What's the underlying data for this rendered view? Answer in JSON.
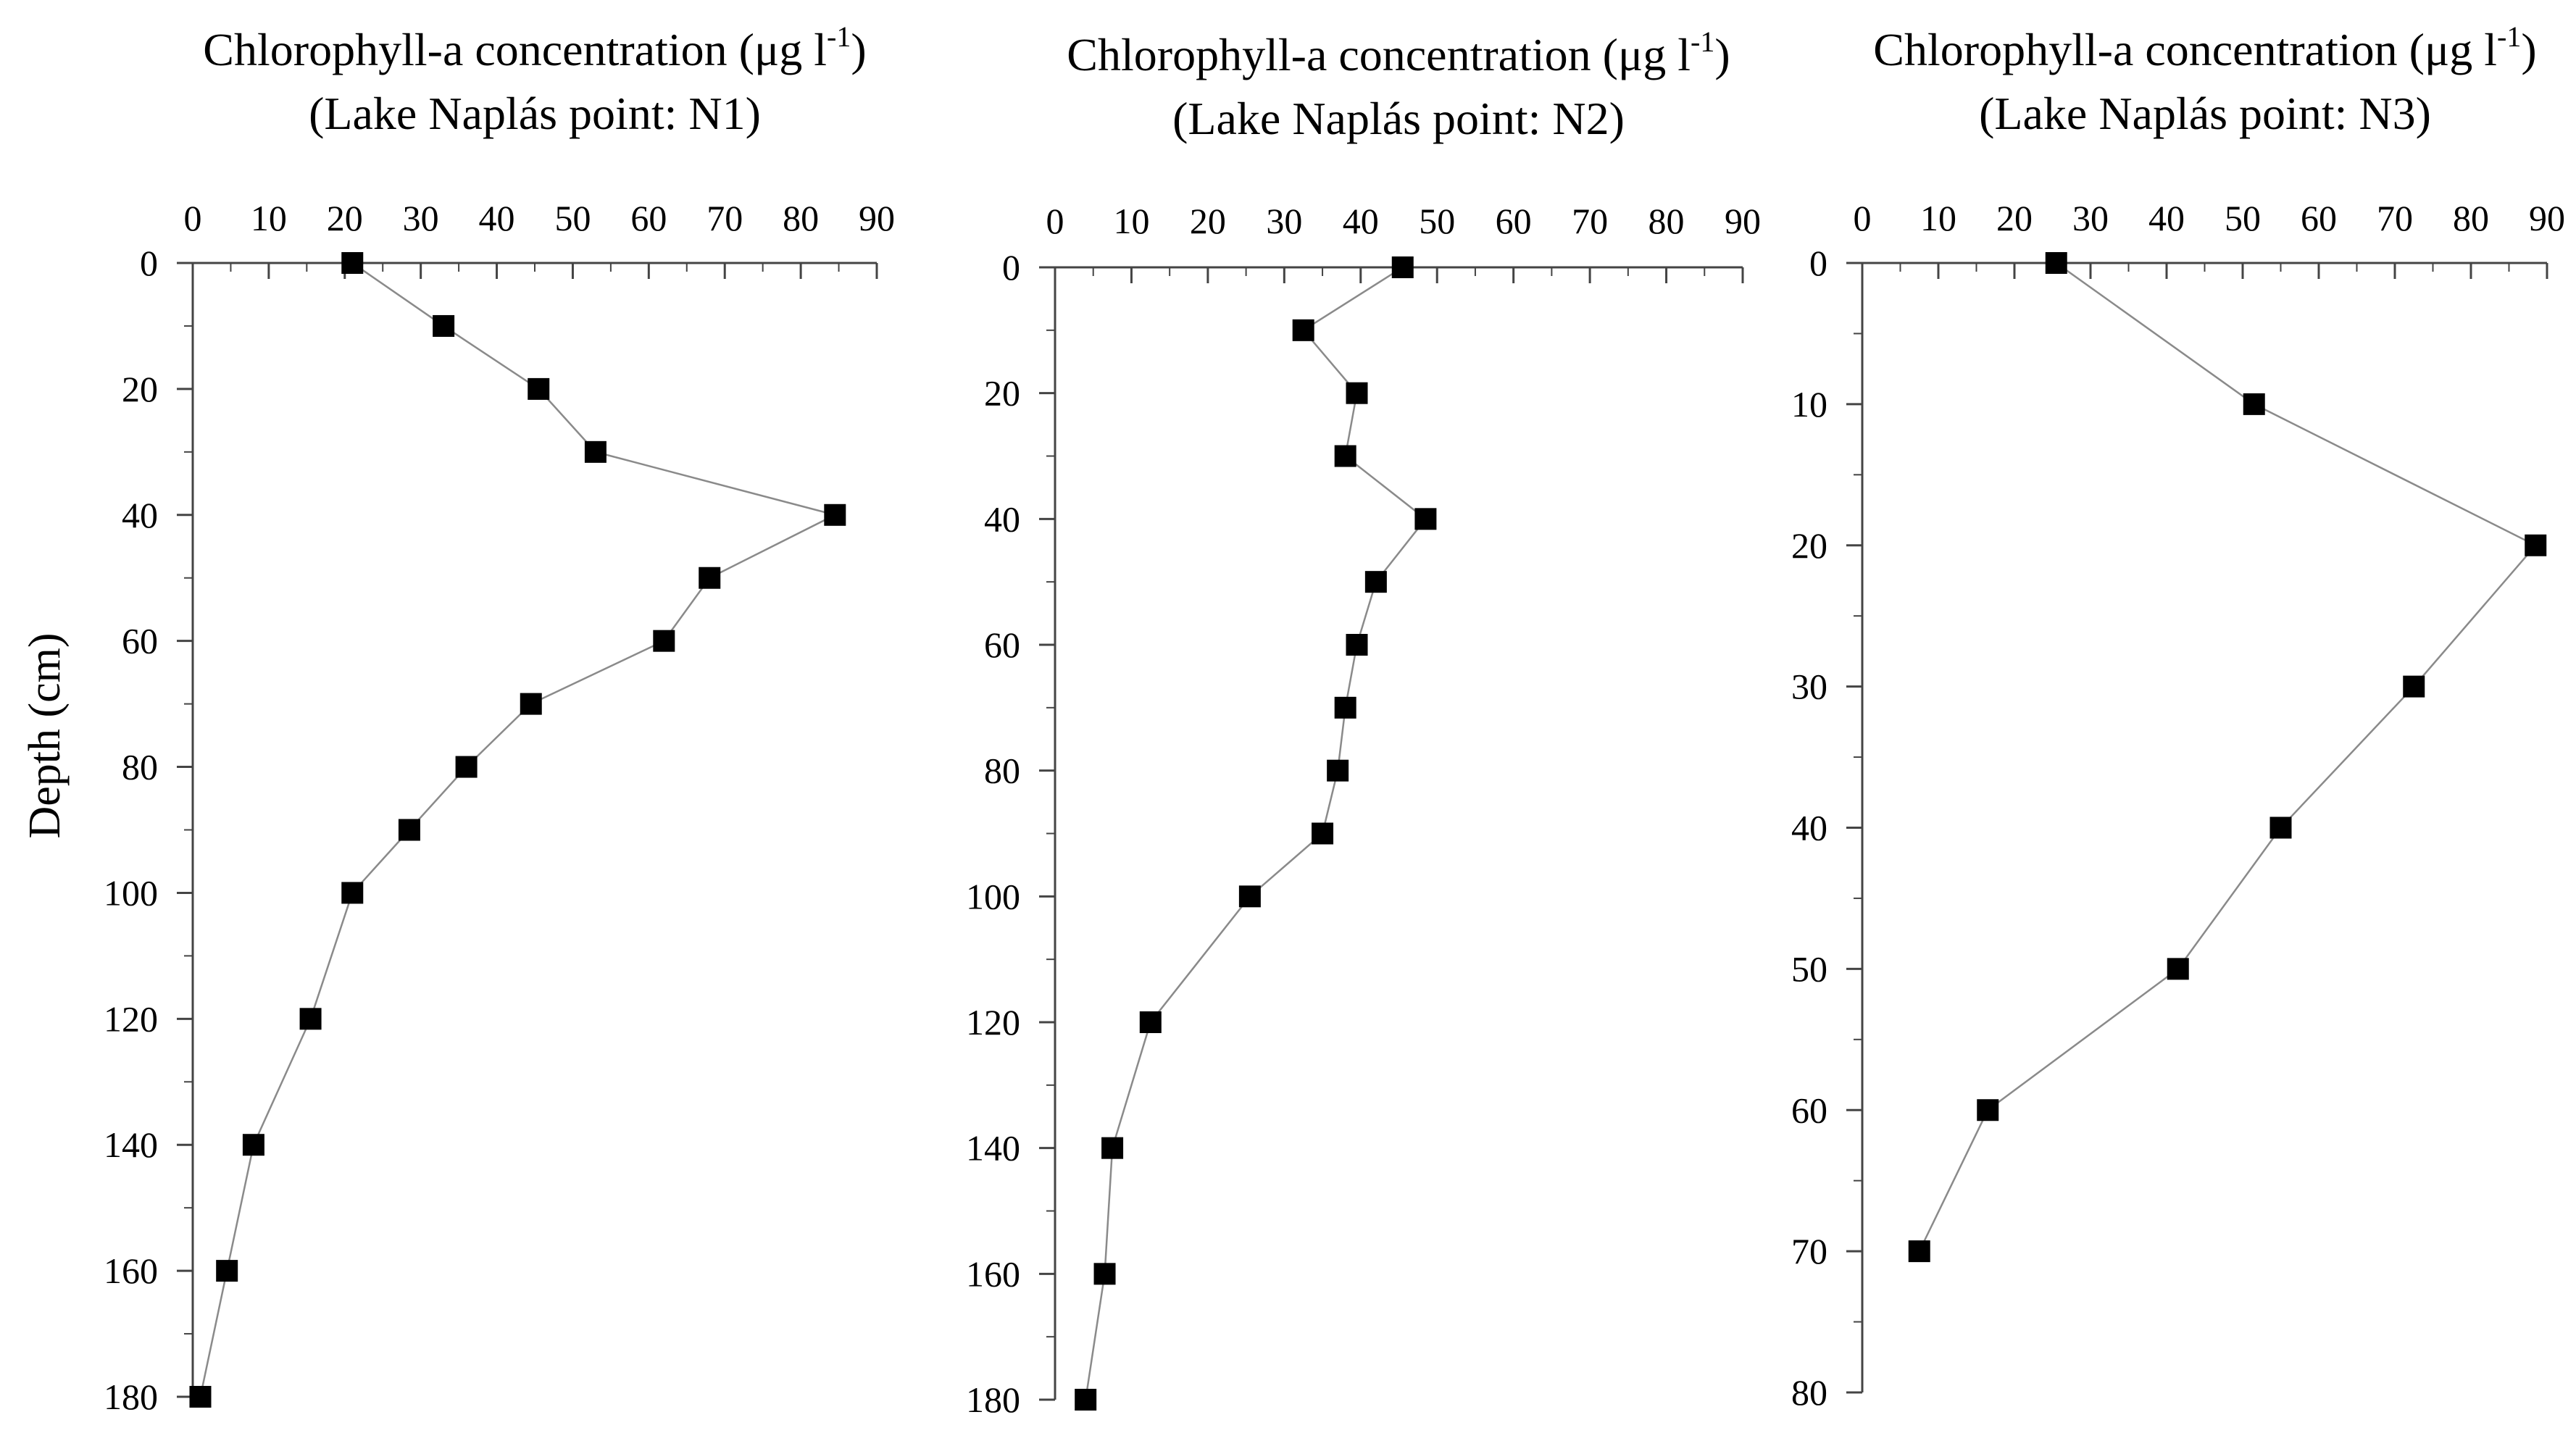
{
  "chart_data": [
    {
      "type": "line",
      "title_line1": "Chlorophyll-a concentration (μg l",
      "title_sup": "-1",
      "title_close": ")",
      "title_line2": "(Lake Naplás point: N1)",
      "xlabel": "Chlorophyll-a concentration (μg l-1)",
      "ylabel": "Depth (cm)",
      "xlim": [
        0,
        90
      ],
      "ylim": [
        0,
        180
      ],
      "x_ticks": [
        0,
        10,
        20,
        30,
        40,
        50,
        60,
        70,
        80,
        90
      ],
      "y_ticks": [
        0,
        20,
        40,
        60,
        80,
        100,
        120,
        140,
        160,
        180
      ],
      "y_minor_step": 10,
      "series": [
        {
          "name": "N1",
          "marker": "square",
          "points": [
            {
              "x": 21,
              "y": 0
            },
            {
              "x": 33,
              "y": 10
            },
            {
              "x": 45.5,
              "y": 20
            },
            {
              "x": 53,
              "y": 30
            },
            {
              "x": 84.5,
              "y": 40
            },
            {
              "x": 68,
              "y": 50
            },
            {
              "x": 62,
              "y": 60
            },
            {
              "x": 44.5,
              "y": 70
            },
            {
              "x": 36,
              "y": 80
            },
            {
              "x": 28.5,
              "y": 90
            },
            {
              "x": 21,
              "y": 100
            },
            {
              "x": 15.5,
              "y": 120
            },
            {
              "x": 8,
              "y": 140
            },
            {
              "x": 4.5,
              "y": 160
            },
            {
              "x": 1,
              "y": 180
            }
          ]
        }
      ]
    },
    {
      "type": "line",
      "title_line1": "Chlorophyll-a concentration (μg l",
      "title_sup": "-1",
      "title_close": ")",
      "title_line2": "(Lake Naplás point: N2)",
      "xlabel": "Chlorophyll-a concentration (μg l-1)",
      "ylabel": "",
      "xlim": [
        0,
        90
      ],
      "ylim": [
        0,
        180
      ],
      "x_ticks": [
        0,
        10,
        20,
        30,
        40,
        50,
        60,
        70,
        80,
        90
      ],
      "y_ticks": [
        0,
        20,
        40,
        60,
        80,
        100,
        120,
        140,
        160,
        180
      ],
      "y_minor_step": 10,
      "series": [
        {
          "name": "N2",
          "marker": "square",
          "points": [
            {
              "x": 45.5,
              "y": 0
            },
            {
              "x": 32.5,
              "y": 10
            },
            {
              "x": 39.5,
              "y": 20
            },
            {
              "x": 38,
              "y": 30
            },
            {
              "x": 48.5,
              "y": 40
            },
            {
              "x": 42,
              "y": 50
            },
            {
              "x": 39.5,
              "y": 60
            },
            {
              "x": 38,
              "y": 70
            },
            {
              "x": 37,
              "y": 80
            },
            {
              "x": 35,
              "y": 90
            },
            {
              "x": 25.5,
              "y": 100
            },
            {
              "x": 12.5,
              "y": 120
            },
            {
              "x": 7.5,
              "y": 140
            },
            {
              "x": 6.5,
              "y": 160
            },
            {
              "x": 4,
              "y": 180
            }
          ]
        }
      ]
    },
    {
      "type": "line",
      "title_line1": "Chlorophyll-a concentration (μg l",
      "title_sup": "-1",
      "title_close": ")",
      "title_line2": "(Lake Naplás point: N3)",
      "xlabel": "Chlorophyll-a concentration (μg l-1)",
      "ylabel": "",
      "xlim": [
        0,
        90
      ],
      "ylim": [
        0,
        80
      ],
      "x_ticks": [
        0,
        10,
        20,
        30,
        40,
        50,
        60,
        70,
        80,
        90
      ],
      "y_ticks": [
        0,
        10,
        20,
        30,
        40,
        50,
        60,
        70,
        80
      ],
      "y_minor_step": 5,
      "series": [
        {
          "name": "N3",
          "marker": "square",
          "points": [
            {
              "x": 25.5,
              "y": 0
            },
            {
              "x": 51.5,
              "y": 10
            },
            {
              "x": 88.5,
              "y": 20
            },
            {
              "x": 72.5,
              "y": 30
            },
            {
              "x": 55,
              "y": 40
            },
            {
              "x": 41.5,
              "y": 50
            },
            {
              "x": 16.5,
              "y": 60
            },
            {
              "x": 7.5,
              "y": 70
            }
          ]
        }
      ]
    }
  ]
}
